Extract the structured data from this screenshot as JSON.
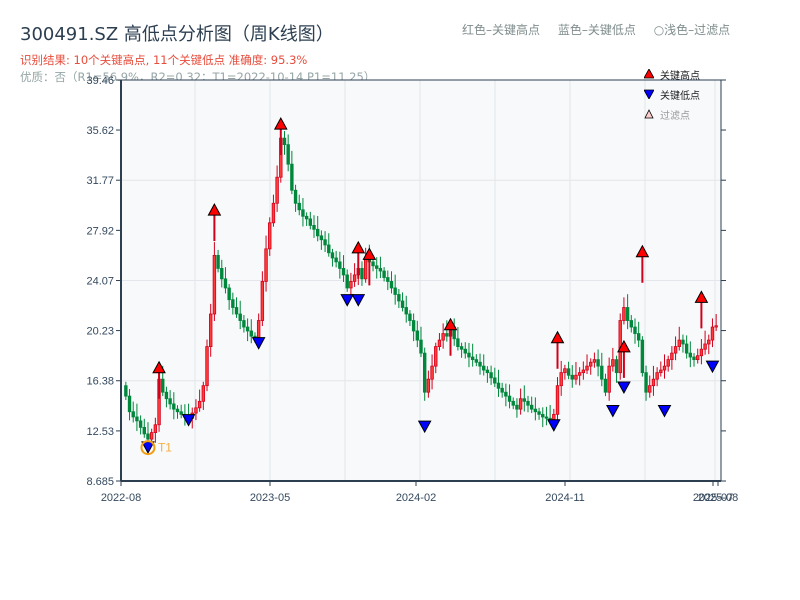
{
  "header": {
    "title": "300491.SZ 高低点分析图（周K线图）",
    "result_line": "识别结果: 10个关键高点, 11个关键低点  准确度: 95.3%",
    "quality_line": "优质：否（R1=56.9%，R2=0.32；T1=2022-10-14 P1=11.25）"
  },
  "top_legend": {
    "items": [
      "红色–关键高点",
      "蓝色–关键低点",
      "○浅色–过滤点"
    ]
  },
  "legend": {
    "items": [
      {
        "label": "关键高点",
        "icon": "red-up-triangle",
        "color": "#ff0000"
      },
      {
        "label": "关键低点",
        "icon": "blue-down-triangle",
        "color": "#0000ff"
      },
      {
        "label": "过滤点",
        "icon": "light-up-triangle",
        "color": "#ffcccc"
      }
    ]
  },
  "colors": {
    "up": "#d0021b",
    "down": "#00873c",
    "high_marker": "#ff0000",
    "low_marker": "#0000ff",
    "t1_ring": "#f39c12",
    "grid": "#e3e6ea",
    "plot_bg": "#f7f9fb",
    "spine": "#2c3e50"
  },
  "chart_data": {
    "type": "candlestick",
    "title": "300491.SZ 高低点分析图（周K线图）",
    "xlabel": "",
    "ylabel": "",
    "ylim": [
      8.685,
      39.46
    ],
    "y_ticks": [
      "8.685",
      "12.53",
      "16.38",
      "20.23",
      "24.07",
      "27.92",
      "31.77",
      "35.62",
      "39.46"
    ],
    "x_ticks": [
      "2022-08",
      "2023-05",
      "2024-02",
      "2024-11",
      "2025-07",
      "2025-08"
    ],
    "grid": true,
    "legend_position": "upper right",
    "annotation": {
      "label": "T1",
      "date": "2022-10-14",
      "price": 11.25
    },
    "key_highs": [
      {
        "x_index": 9,
        "price": 17.3
      },
      {
        "x_index": 24,
        "price": 29.4
      },
      {
        "x_index": 42,
        "price": 36.0
      },
      {
        "x_index": 63,
        "price": 26.5
      },
      {
        "x_index": 66,
        "price": 26.0
      },
      {
        "x_index": 88,
        "price": 20.6
      },
      {
        "x_index": 117,
        "price": 19.6
      },
      {
        "x_index": 135,
        "price": 18.9
      },
      {
        "x_index": 140,
        "price": 26.2
      },
      {
        "x_index": 156,
        "price": 22.7
      }
    ],
    "key_lows": [
      {
        "x_index": 6,
        "price": 11.3
      },
      {
        "x_index": 17,
        "price": 13.4
      },
      {
        "x_index": 36,
        "price": 19.3
      },
      {
        "x_index": 60,
        "price": 22.6
      },
      {
        "x_index": 63,
        "price": 22.6
      },
      {
        "x_index": 81,
        "price": 12.9
      },
      {
        "x_index": 116,
        "price": 13.0
      },
      {
        "x_index": 132,
        "price": 14.1
      },
      {
        "x_index": 135,
        "price": 15.9
      },
      {
        "x_index": 146,
        "price": 14.1
      },
      {
        "x_index": 159,
        "price": 17.5
      }
    ],
    "close_series": [
      15.2,
      14.0,
      13.6,
      13.3,
      12.8,
      12.3,
      11.9,
      12.4,
      13.0,
      16.5,
      15.5,
      15.0,
      14.6,
      14.2,
      14.0,
      13.8,
      13.6,
      13.5,
      13.9,
      14.3,
      14.8,
      16.0,
      19.0,
      21.5,
      26.0,
      25.0,
      24.2,
      23.5,
      22.6,
      22.0,
      21.5,
      21.0,
      20.5,
      20.2,
      19.8,
      19.6,
      21.0,
      24.0,
      26.5,
      28.5,
      30.0,
      32.0,
      35.0,
      34.5,
      33.0,
      31.0,
      30.0,
      29.5,
      29.0,
      28.8,
      28.3,
      28.0,
      27.5,
      27.2,
      26.8,
      26.2,
      25.8,
      25.5,
      25.0,
      24.5,
      23.5,
      24.0,
      24.5,
      25.0,
      24.2,
      25.8,
      25.5,
      25.2,
      25.0,
      24.8,
      24.3,
      24.0,
      23.5,
      23.0,
      22.5,
      22.0,
      21.5,
      21.0,
      20.2,
      19.5,
      18.5,
      15.5,
      16.5,
      17.5,
      19.0,
      19.5,
      20.0,
      19.8,
      20.5,
      19.6,
      19.0,
      18.8,
      18.5,
      18.2,
      18.0,
      17.8,
      17.5,
      17.2,
      17.0,
      16.6,
      16.2,
      15.8,
      15.5,
      15.2,
      14.8,
      14.5,
      14.2,
      15.0,
      14.8,
      14.5,
      14.2,
      14.0,
      13.8,
      13.6,
      13.5,
      13.4,
      13.8,
      16.0,
      17.0,
      17.3,
      16.8,
      16.5,
      16.8,
      17.0,
      17.2,
      17.5,
      17.8,
      18.0,
      17.5,
      16.5,
      15.5,
      17.5,
      18.0,
      17.0,
      21.0,
      22.0,
      21.0,
      20.5,
      20.0,
      19.5,
      17.0,
      15.5,
      16.0,
      16.5,
      17.0,
      17.2,
      17.5,
      18.0,
      18.5,
      19.0,
      19.5,
      19.2,
      18.5,
      18.2,
      18.0,
      18.3,
      18.8,
      19.2,
      19.5,
      20.5,
      20.6
    ]
  }
}
